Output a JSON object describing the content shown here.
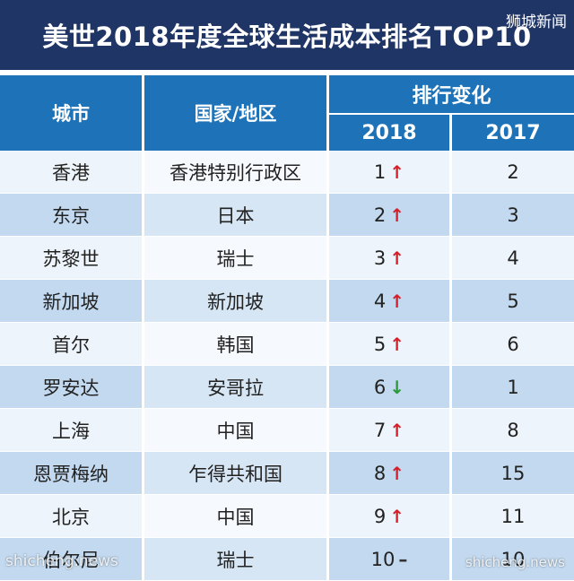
{
  "title": "美世2018年度全球生活成本排名TOP10",
  "watermark_top": "狮城新闻",
  "watermark_bottom_left": "shicheng.news",
  "watermark_bottom_right": "shicheng.news",
  "table": {
    "headers": {
      "city": "城市",
      "country": "国家/地区",
      "rank_change": "排行变化",
      "year_2018": "2018",
      "year_2017": "2017"
    },
    "rows": [
      {
        "city": "香港",
        "country": "香港特别行政区",
        "rank_2018": "1",
        "trend": "up",
        "rank_2017": "2"
      },
      {
        "city": "东京",
        "country": "日本",
        "rank_2018": "2",
        "trend": "up",
        "rank_2017": "3"
      },
      {
        "city": "苏黎世",
        "country": "瑞士",
        "rank_2018": "3",
        "trend": "up",
        "rank_2017": "4"
      },
      {
        "city": "新加坡",
        "country": "新加坡",
        "rank_2018": "4",
        "trend": "up",
        "rank_2017": "5"
      },
      {
        "city": "首尔",
        "country": "韩国",
        "rank_2018": "5",
        "trend": "up",
        "rank_2017": "6"
      },
      {
        "city": "罗安达",
        "country": "安哥拉",
        "rank_2018": "6",
        "trend": "down",
        "rank_2017": "1"
      },
      {
        "city": "上海",
        "country": "中国",
        "rank_2018": "7",
        "trend": "up",
        "rank_2017": "8"
      },
      {
        "city": "恩贾梅纳",
        "country": "乍得共和国",
        "rank_2018": "8",
        "trend": "up",
        "rank_2017": "15"
      },
      {
        "city": "北京",
        "country": "中国",
        "rank_2018": "9",
        "trend": "up",
        "rank_2017": "11"
      },
      {
        "city": "伯尔尼",
        "country": "瑞士",
        "rank_2018": "10",
        "trend": "same",
        "rank_2017": "10"
      }
    ]
  },
  "colors": {
    "title_bg": "#1f3566",
    "header_bg": "#1e73b8",
    "row_light": "#eef4fb",
    "row_dark": "#c2d9ef",
    "trend_up": "#d4202a",
    "trend_down": "#2a9a3a"
  }
}
